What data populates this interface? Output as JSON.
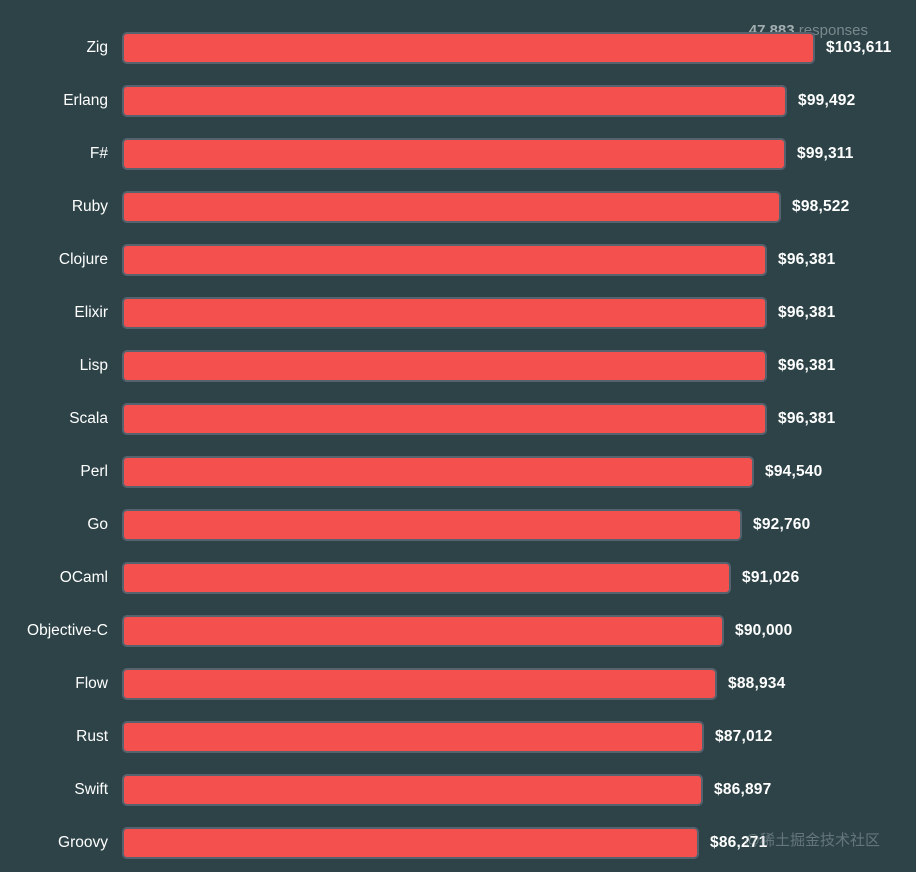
{
  "header": {
    "responses_count": "47,883",
    "responses_label": " responses"
  },
  "watermark": "@稀土掘金技术社区",
  "colors": {
    "background": "#2d4347",
    "bar_fill": "#f4514e",
    "bar_border": "#56626e",
    "label_text": "#ffffff",
    "value_text": "#ffffff",
    "responses_count": "#a3aeb1",
    "responses_label": "#79898c",
    "watermark": "rgba(170,182,186,0.45)"
  },
  "chart_data": {
    "type": "bar",
    "orientation": "horizontal",
    "title": "",
    "annotation": "47,883 responses",
    "categories": [
      "Zig",
      "Erlang",
      "F#",
      "Ruby",
      "Clojure",
      "Elixir",
      "Lisp",
      "Scala",
      "Perl",
      "Go",
      "OCaml",
      "Objective-C",
      "Flow",
      "Rust",
      "Swift",
      "Groovy"
    ],
    "values": [
      103611,
      99492,
      99311,
      98522,
      96381,
      96381,
      96381,
      96381,
      94540,
      92760,
      91026,
      90000,
      88934,
      87012,
      86897,
      86271
    ],
    "value_labels": [
      "$103,611",
      "$99,492",
      "$99,311",
      "$98,522",
      "$96,381",
      "$96,381",
      "$96,381",
      "$96,381",
      "$94,540",
      "$92,760",
      "$91,026",
      "$90,000",
      "$88,934",
      "$87,012",
      "$86,897",
      "$86,271"
    ],
    "xlim": [
      0,
      103611
    ],
    "ylabel": "",
    "xlabel": "",
    "grid": false,
    "legend": "none"
  }
}
